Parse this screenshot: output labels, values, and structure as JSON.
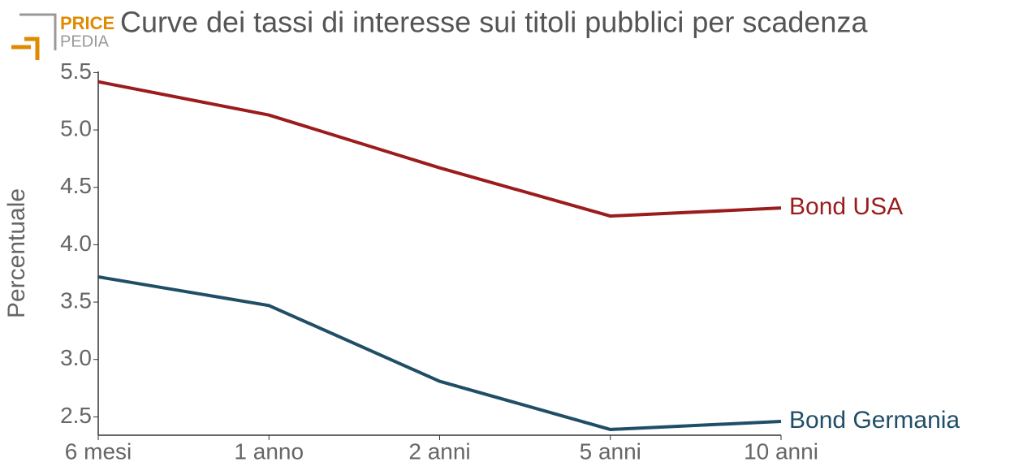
{
  "logo": {
    "top": "PRICE",
    "bottom": "PEDIA"
  },
  "chart_data": {
    "type": "line",
    "title": "Curve dei tassi di interesse sui titoli pubblici per scadenza",
    "y_label": "Percentuale",
    "categories": [
      "6 mesi",
      "1 anno",
      "2 anni",
      "5 anni",
      "10 anni"
    ],
    "series": [
      {
        "name": "Bond USA",
        "color": "#9b1c1c",
        "values": [
          5.42,
          5.13,
          4.67,
          4.25,
          4.32
        ]
      },
      {
        "name": "Bond Germania",
        "color": "#1f4e66",
        "values": [
          3.72,
          3.47,
          2.81,
          2.39,
          2.46
        ]
      }
    ],
    "ylim": [
      2.34,
      5.51
    ],
    "yticks": [
      {
        "value": 2.5,
        "label": "2.5"
      },
      {
        "value": 3,
        "label": "3.0"
      },
      {
        "value": 3.5,
        "label": "3.5"
      },
      {
        "value": 4,
        "label": "4.0"
      },
      {
        "value": 4.5,
        "label": "4.5"
      },
      {
        "value": 5,
        "label": "5.0"
      },
      {
        "value": 5.5,
        "label": "5.5"
      }
    ],
    "grid": false
  }
}
